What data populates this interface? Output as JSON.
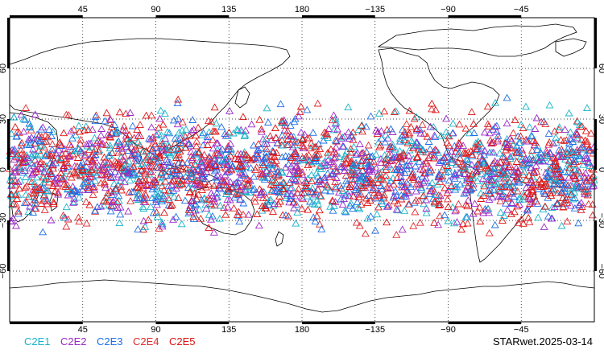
{
  "map": {
    "projection": "cylindrical-equidistant",
    "lon_range": [
      0,
      360
    ],
    "lat_range": [
      -90,
      90
    ],
    "gridlines": {
      "lon": [
        45,
        90,
        135,
        180,
        225,
        270,
        315
      ],
      "lat": [
        -60,
        -30,
        0,
        30,
        60
      ]
    },
    "lon_tick_labels": [
      "45",
      "90",
      "135",
      "180",
      "−135",
      "−90",
      "−45"
    ],
    "lat_tick_labels": [
      "−60",
      "−30",
      "0",
      "30",
      "60"
    ],
    "grid_style": "dotted",
    "frame_style": "dashed-black-white"
  },
  "observations": {
    "marker": "open-triangle",
    "lat_band": [
      -45,
      45
    ],
    "note_density": "dense"
  },
  "legend": [
    {
      "label": "C2E1",
      "color": "#17b3c9"
    },
    {
      "label": "C2E2",
      "color": "#9b28c8"
    },
    {
      "label": "C2E3",
      "color": "#1e6fe6"
    },
    {
      "label": "C2E4",
      "color": "#e0282d"
    },
    {
      "label": "C2E5",
      "color": "#dd1111"
    }
  ],
  "stamp": "STARwet.2025-03-14"
}
